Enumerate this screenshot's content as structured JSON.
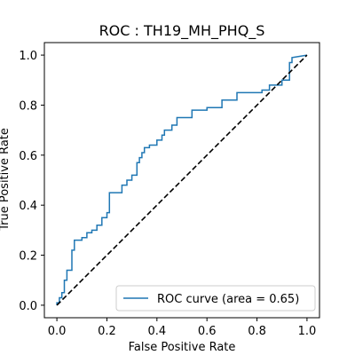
{
  "chart_data": {
    "type": "line",
    "title": "ROC : TH19_MH_PHQ_S",
    "xlabel": "False Positive Rate",
    "ylabel": "True Positive Rate",
    "xlim": [
      -0.05,
      1.05
    ],
    "ylim": [
      -0.05,
      1.05
    ],
    "x_ticks": [
      "0.0",
      "0.2",
      "0.4",
      "0.6",
      "0.8",
      "1.0"
    ],
    "y_ticks": [
      "0.0",
      "0.2",
      "0.4",
      "0.6",
      "0.8",
      "1.0"
    ],
    "grid": false,
    "legend": {
      "position": "lower-right",
      "entries": [
        "ROC curve (area = 0.65)"
      ]
    },
    "colors": {
      "roc": "#1f77b4",
      "chance": "#000000"
    },
    "series": [
      {
        "name": "ROC curve (area = 0.65)",
        "style": "solid",
        "x": [
          0.0,
          0.0,
          0.01,
          0.01,
          0.02,
          0.02,
          0.03,
          0.03,
          0.04,
          0.04,
          0.06,
          0.06,
          0.07,
          0.07,
          0.1,
          0.1,
          0.12,
          0.12,
          0.14,
          0.14,
          0.16,
          0.16,
          0.18,
          0.18,
          0.2,
          0.2,
          0.21,
          0.21,
          0.22,
          0.22,
          0.26,
          0.26,
          0.28,
          0.28,
          0.3,
          0.3,
          0.32,
          0.32,
          0.33,
          0.33,
          0.34,
          0.34,
          0.35,
          0.35,
          0.36,
          0.36,
          0.37,
          0.37,
          0.4,
          0.4,
          0.42,
          0.42,
          0.43,
          0.43,
          0.46,
          0.46,
          0.48,
          0.48,
          0.5,
          0.5,
          0.54,
          0.54,
          0.6,
          0.6,
          0.66,
          0.66,
          0.72,
          0.72,
          0.82,
          0.82,
          0.85,
          0.85,
          0.9,
          0.9,
          0.93,
          0.93,
          0.94,
          0.94,
          1.0
        ],
        "y": [
          0.0,
          0.01,
          0.01,
          0.03,
          0.03,
          0.05,
          0.05,
          0.1,
          0.1,
          0.14,
          0.14,
          0.22,
          0.22,
          0.26,
          0.26,
          0.27,
          0.27,
          0.29,
          0.29,
          0.3,
          0.3,
          0.32,
          0.32,
          0.35,
          0.35,
          0.37,
          0.37,
          0.45,
          0.45,
          0.45,
          0.45,
          0.48,
          0.48,
          0.5,
          0.5,
          0.52,
          0.52,
          0.57,
          0.57,
          0.59,
          0.59,
          0.61,
          0.61,
          0.63,
          0.63,
          0.63,
          0.63,
          0.64,
          0.64,
          0.66,
          0.66,
          0.68,
          0.68,
          0.7,
          0.7,
          0.72,
          0.72,
          0.75,
          0.75,
          0.75,
          0.75,
          0.78,
          0.78,
          0.79,
          0.79,
          0.82,
          0.82,
          0.85,
          0.85,
          0.86,
          0.86,
          0.88,
          0.88,
          0.9,
          0.9,
          0.97,
          0.97,
          0.99,
          1.0
        ]
      },
      {
        "name": "",
        "style": "dashed",
        "x": [
          0,
          1
        ],
        "y": [
          0,
          1
        ]
      }
    ]
  }
}
